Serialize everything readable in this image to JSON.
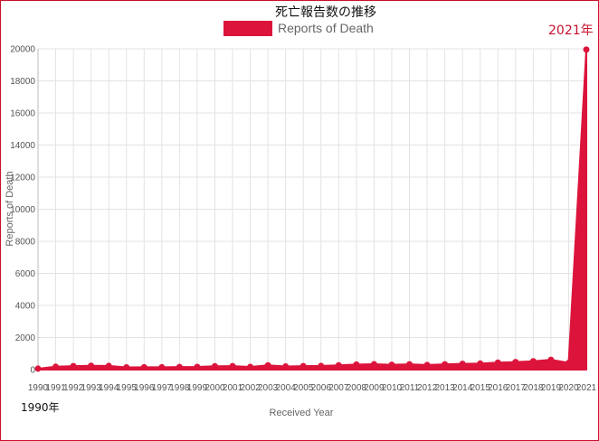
{
  "chart_data": {
    "type": "area",
    "title": "死亡報告数の推移",
    "xlabel": "Received Year",
    "ylabel": "Reports of Death",
    "ylim": [
      0,
      20000
    ],
    "y_ticks": [
      0,
      2000,
      4000,
      6000,
      8000,
      10000,
      12000,
      14000,
      16000,
      18000,
      20000
    ],
    "x": [
      "1990",
      "1991",
      "1992",
      "1993",
      "1994",
      "1995",
      "1996",
      "1997",
      "1998",
      "1999",
      "2000",
      "2001",
      "2002",
      "2003",
      "2004",
      "2005",
      "2006",
      "2007",
      "2008",
      "2009",
      "2010",
      "2011",
      "2012",
      "2013",
      "2014",
      "2015",
      "2016",
      "2017",
      "2018",
      "2019",
      "2020",
      "2021"
    ],
    "series": [
      {
        "name": "Reports of Death",
        "color": "#dc143c",
        "values": [
          60,
          180,
          220,
          240,
          230,
          140,
          150,
          150,
          160,
          170,
          210,
          220,
          170,
          270,
          200,
          220,
          230,
          270,
          320,
          340,
          300,
          330,
          290,
          330,
          360,
          380,
          440,
          470,
          520,
          610,
          420,
          19950
        ]
      }
    ],
    "legend": "top-center",
    "grid": true,
    "annotations": {
      "start": "1990年",
      "end": "2021年"
    }
  }
}
